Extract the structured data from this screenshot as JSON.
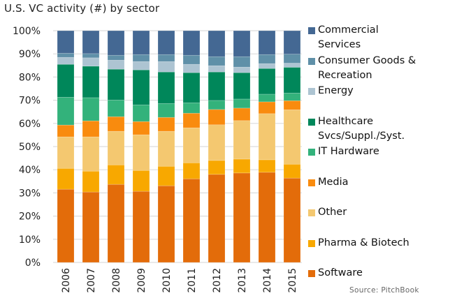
{
  "chart_data": {
    "type": "bar",
    "stacked": true,
    "percent": true,
    "title": "U.S. VC activity (#) by sector",
    "xlabel": "",
    "ylabel": "",
    "ylim": [
      0,
      100
    ],
    "yticks": [
      "0%",
      "10%",
      "20%",
      "30%",
      "40%",
      "50%",
      "60%",
      "70%",
      "80%",
      "90%",
      "100%"
    ],
    "grid": true,
    "legend_position": "right",
    "categories": [
      "2006",
      "2007",
      "2008",
      "2009",
      "2010",
      "2011",
      "2012",
      "2013",
      "2014",
      "2015"
    ],
    "series": [
      {
        "name": "Software",
        "color": "#e36c0a",
        "values": [
          31.6,
          30.4,
          33.7,
          30.7,
          33.1,
          36.1,
          38.0,
          38.6,
          38.9,
          36.4
        ]
      },
      {
        "name": "Pharma & Biotech",
        "color": "#f8a800",
        "values": [
          9.0,
          9.0,
          8.4,
          9.0,
          8.4,
          6.9,
          6.0,
          6.0,
          5.4,
          6.0
        ]
      },
      {
        "name": "Other",
        "color": "#f4c870",
        "values": [
          13.6,
          14.8,
          14.5,
          15.4,
          15.1,
          15.1,
          15.4,
          16.6,
          19.9,
          23.5
        ]
      },
      {
        "name": "Media",
        "color": "#f98b0e",
        "values": [
          5.1,
          6.9,
          6.3,
          5.7,
          6.0,
          6.3,
          6.6,
          5.4,
          5.1,
          3.9
        ]
      },
      {
        "name": "IT Hardware",
        "color": "#33b27b",
        "values": [
          12.0,
          10.0,
          7.2,
          7.2,
          6.0,
          4.5,
          3.9,
          3.9,
          3.3,
          3.3
        ]
      },
      {
        "name": "Healthcare Svcs/Suppl./Syst.",
        "color": "#00875a",
        "values": [
          14.2,
          13.6,
          13.3,
          15.1,
          13.6,
          13.0,
          12.3,
          11.4,
          11.1,
          11.1
        ]
      },
      {
        "name": "Energy",
        "color": "#adc4d2",
        "values": [
          3.0,
          3.6,
          3.9,
          3.6,
          4.5,
          3.6,
          2.7,
          2.4,
          2.1,
          1.8
        ]
      },
      {
        "name": "Consumer Goods & Recreation",
        "color": "#5f90a8",
        "values": [
          1.8,
          1.8,
          2.1,
          3.0,
          3.0,
          3.9,
          3.9,
          4.5,
          3.9,
          3.9
        ]
      },
      {
        "name": "Commercial Services",
        "color": "#446893",
        "values": [
          9.7,
          9.9,
          10.6,
          10.3,
          10.3,
          10.6,
          11.2,
          11.2,
          10.3,
          10.1
        ]
      }
    ]
  },
  "legend": {
    "items": [
      {
        "lines": [
          "Commercial",
          "Services"
        ],
        "color": "#446893"
      },
      {
        "lines": [
          "Consumer Goods &",
          "Recreation"
        ],
        "color": "#5f90a8"
      },
      {
        "lines": [
          "Energy"
        ],
        "color": "#adc4d2"
      },
      {
        "lines": [
          "Healthcare",
          "Svcs/Suppl./Syst."
        ],
        "color": "#00875a"
      },
      {
        "lines": [
          "IT Hardware"
        ],
        "color": "#33b27b"
      },
      {
        "lines": [
          "Media"
        ],
        "color": "#f98b0e"
      },
      {
        "lines": [
          "Other"
        ],
        "color": "#f4c870"
      },
      {
        "lines": [
          "Pharma & Biotech"
        ],
        "color": "#f8a800"
      },
      {
        "lines": [
          "Software"
        ],
        "color": "#e36c0a"
      }
    ]
  },
  "source": "Source: PitchBook"
}
